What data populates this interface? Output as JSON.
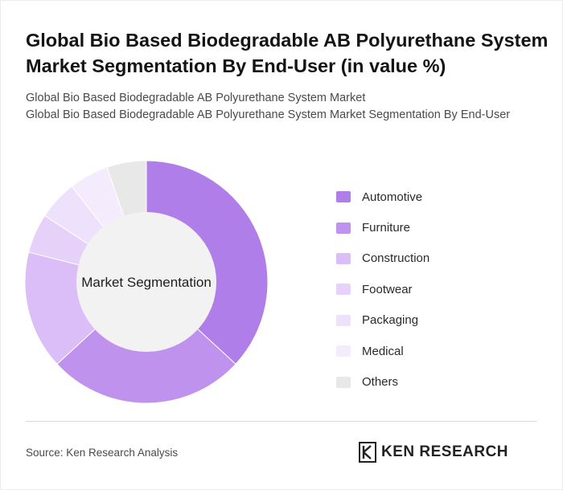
{
  "header": {
    "title": "Global Bio Based Biodegradable AB Polyurethane System Market Segmentation By End-User (in value %)",
    "subtitle_1": "Global Bio Based Biodegradable AB Polyurethane System Market",
    "subtitle_2": "Global Bio Based Biodegradable AB Polyurethane System Market Segmentation By End-User"
  },
  "chart_data": {
    "type": "pie",
    "variant": "donut",
    "center_label": "Market Segmentation",
    "categories": [
      "Automotive",
      "Furniture",
      "Construction",
      "Footwear",
      "Packaging",
      "Medical",
      "Others"
    ],
    "values": [
      35,
      25,
      15,
      5,
      5,
      5,
      5
    ],
    "colors": [
      "#b07ee8",
      "#bf92ee",
      "#dbbdf7",
      "#e6d1f9",
      "#eee1fb",
      "#f4ecfc",
      "#e8e8e8"
    ],
    "legend_position": "right"
  },
  "footer": {
    "source": "Source: Ken Research Analysis",
    "logo_text": "KEN RESEARCH",
    "logo_icon": "ken-research-k-icon"
  }
}
